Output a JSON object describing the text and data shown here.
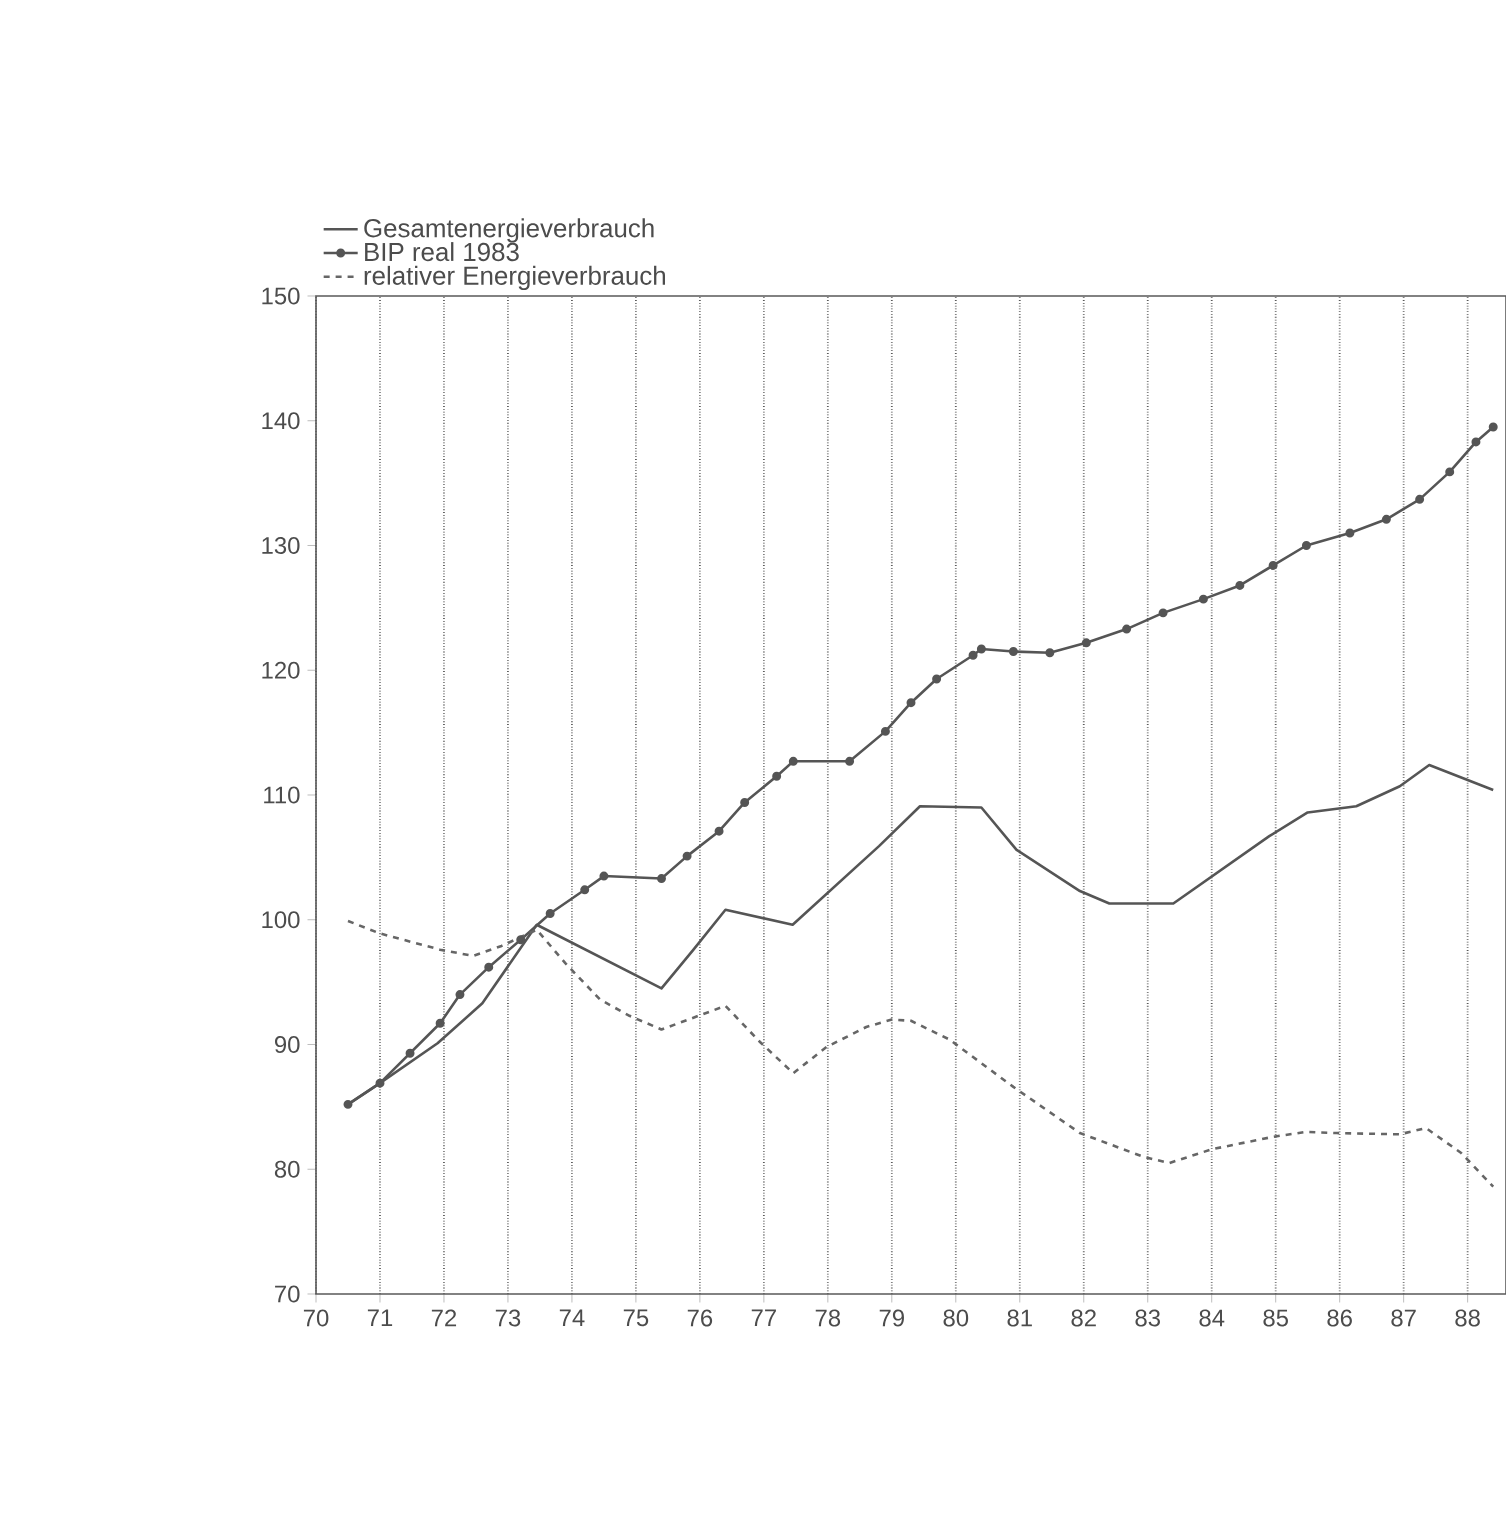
{
  "chart_data": {
    "type": "line",
    "xlim": [
      70,
      88.6
    ],
    "ylim": [
      70,
      150
    ],
    "xticks": [
      70,
      71,
      72,
      73,
      74,
      75,
      76,
      77,
      78,
      79,
      80,
      81,
      82,
      83,
      84,
      85,
      86,
      87,
      88
    ],
    "yticks": [
      70,
      80,
      90,
      100,
      110,
      120,
      130,
      140,
      150
    ],
    "grid": "x",
    "legend": "top left",
    "series": [
      {
        "name": "Gesamtenergieverbrauch",
        "color": "#555555",
        "line_style": "solid",
        "marker": "none",
        "x": [
          70.5,
          71,
          71.9,
          72.6,
          73.45,
          75.4,
          75.9,
          76.4,
          77.45,
          78.8,
          79.44,
          80.4,
          80.95,
          81.94,
          82.4,
          83.4,
          84.9,
          85.5,
          86.26,
          86.94,
          87.4,
          88.4
        ],
        "values": [
          85.2,
          86.9,
          90.1,
          93.3,
          99.6,
          94.5,
          97.6,
          100.8,
          99.6,
          105.9,
          109.1,
          109.0,
          105.6,
          102.3,
          101.3,
          101.3,
          106.7,
          108.6,
          109.1,
          110.7,
          112.4,
          110.4
        ]
      },
      {
        "name": "BIP real 1983",
        "color": "#555555",
        "line_style": "solid",
        "marker": "circle",
        "x": [
          70.5,
          71,
          71.47,
          71.94,
          72.25,
          72.7,
          73.2,
          73.66,
          74.2,
          74.5,
          75.4,
          75.8,
          76.3,
          76.7,
          77.2,
          77.46,
          78.34,
          78.9,
          79.3,
          79.7,
          80.27,
          80.4,
          80.9,
          81.47,
          82.04,
          82.67,
          83.24,
          83.87,
          84.44,
          84.96,
          85.48,
          86.16,
          86.73,
          87.25,
          87.72,
          88.13,
          88.4
        ],
        "values": [
          85.2,
          86.9,
          89.3,
          91.7,
          94.0,
          96.2,
          98.4,
          100.5,
          102.4,
          103.5,
          103.3,
          105.1,
          107.1,
          109.4,
          111.5,
          112.7,
          112.7,
          115.1,
          117.4,
          119.3,
          121.2,
          121.7,
          121.5,
          121.4,
          122.2,
          123.3,
          124.6,
          125.7,
          126.8,
          128.4,
          130.0,
          131.0,
          132.1,
          133.7,
          135.9,
          138.3,
          139.5
        ]
      },
      {
        "name": "relativer Energieverbrauch",
        "color": "#666666",
        "line_style": "dashed",
        "marker": "none",
        "x": [
          70.5,
          71,
          71.94,
          72.46,
          72.9,
          73.45,
          73.9,
          74.44,
          74.9,
          75.4,
          76.4,
          76.94,
          77.46,
          77.98,
          78.6,
          79.0,
          79.3,
          79.9,
          80.9,
          81.94,
          82.93,
          83.34,
          84.0,
          84.96,
          85.48,
          85.95,
          86.94,
          87.35,
          87.9,
          88.4
        ],
        "values": [
          99.9,
          98.9,
          97.6,
          97.1,
          97.9,
          99.2,
          96.5,
          93.6,
          92.3,
          91.2,
          93.1,
          90.2,
          87.7,
          89.8,
          91.4,
          92.0,
          91.9,
          90.4,
          86.6,
          82.9,
          81.0,
          80.5,
          81.6,
          82.6,
          83.0,
          82.9,
          82.8,
          83.3,
          81.3,
          78.6
        ]
      }
    ]
  }
}
